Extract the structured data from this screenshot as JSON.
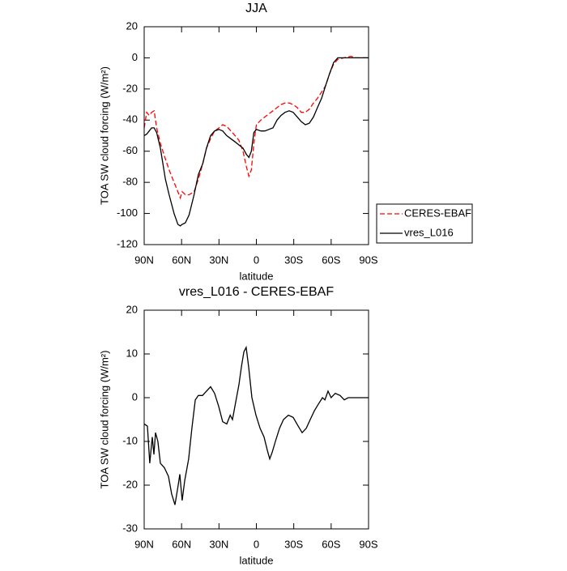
{
  "chart_data": [
    {
      "type": "line",
      "title": "JJA",
      "xlabel": "latitude",
      "ylabel": "TOA SW cloud forcing (W/m²)",
      "xlim": [
        90,
        -90
      ],
      "xticks": [
        {
          "value": 90,
          "label": "90N"
        },
        {
          "value": 60,
          "label": "60N"
        },
        {
          "value": 30,
          "label": "30N"
        },
        0,
        {
          "value": -30,
          "label": "30S"
        },
        {
          "value": -60,
          "label": "60S"
        },
        {
          "value": -90,
          "label": "90S"
        }
      ],
      "ylim": [
        -120,
        20
      ],
      "yticks": [
        -120,
        -100,
        -80,
        -60,
        -40,
        -20,
        0,
        20
      ],
      "legend": "right",
      "x": [
        90,
        88,
        86,
        84,
        82,
        80,
        77,
        73,
        70,
        66,
        63,
        61,
        59.5,
        57,
        54,
        50,
        46.5,
        43,
        40,
        36.7,
        33.5,
        30,
        27,
        23.7,
        20.5,
        17,
        14,
        10.7,
        8,
        6,
        4,
        2,
        0,
        -3.6,
        -6.8,
        -10,
        -13.3,
        -16.6,
        -19.8,
        -23,
        -26.3,
        -29.5,
        -32.8,
        -36,
        -39.3,
        -42.5,
        -45.8,
        -49,
        -52.3,
        -55.5,
        -58.8,
        -62,
        -65.3,
        -70.5,
        -76,
        -80,
        -90
      ],
      "series": [
        {
          "name": "CERES-EBAF",
          "color": "#ff0000",
          "linestyle": "dashed",
          "values": [
            -45,
            -35,
            -37,
            -35,
            -34,
            -45,
            -55,
            -65,
            -72,
            -80,
            -86,
            -90,
            -86,
            -88,
            -88,
            -86,
            -78,
            -68,
            -58,
            -52,
            -47,
            -45,
            -43,
            -44,
            -47,
            -50,
            -53,
            -60,
            -70,
            -76,
            -72,
            -55,
            -43,
            -40,
            -38,
            -36,
            -34,
            -32,
            -30,
            -29,
            -29,
            -30,
            -32,
            -35,
            -35,
            -33,
            -29,
            -26,
            -22,
            -18,
            -10,
            -4,
            -1,
            0,
            1,
            0,
            0
          ]
        },
        {
          "name": "vres_L016",
          "color": "#000000",
          "linestyle": "solid",
          "values": [
            -50,
            -49,
            -47,
            -45,
            -45,
            -48,
            -58,
            -78,
            -88,
            -100,
            -107,
            -108,
            -107,
            -106,
            -101,
            -88,
            -75,
            -68,
            -58,
            -50,
            -47,
            -46,
            -47,
            -50,
            -52,
            -54,
            -56,
            -58,
            -62,
            -64,
            -60,
            -48,
            -46,
            -47,
            -47,
            -46,
            -45,
            -40,
            -37,
            -35,
            -34,
            -35,
            -38,
            -41,
            -43,
            -42,
            -38,
            -32,
            -26,
            -18,
            -10,
            -3,
            0,
            0,
            0,
            0,
            0
          ]
        }
      ]
    },
    {
      "type": "line",
      "title": "vres_L016 - CERES-EBAF",
      "xlabel": "latitude",
      "ylabel": "TOA SW cloud forcing (W/m²)",
      "xlim": [
        90,
        -90
      ],
      "xticks": [
        {
          "value": 90,
          "label": "90N"
        },
        {
          "value": 60,
          "label": "60N"
        },
        {
          "value": 30,
          "label": "30N"
        },
        0,
        {
          "value": -30,
          "label": "30S"
        },
        {
          "value": -60,
          "label": "60S"
        },
        {
          "value": -90,
          "label": "90S"
        }
      ],
      "ylim": [
        -30,
        20
      ],
      "yticks": [
        -30,
        -20,
        -10,
        0,
        10,
        20
      ],
      "x": [
        90,
        87.4,
        85.5,
        83.5,
        82.2,
        80.9,
        79,
        77,
        73.8,
        70.5,
        68,
        65.3,
        62.7,
        61.4,
        59.5,
        57.5,
        54.3,
        51.7,
        49,
        46.5,
        43.2,
        40,
        36.7,
        33.5,
        30.2,
        27,
        23.7,
        21,
        19.2,
        16.6,
        14,
        12,
        10,
        8.2,
        6.2,
        3.6,
        0.3,
        -3,
        -6.2,
        -8.8,
        -10.7,
        -12.7,
        -15.3,
        -18.6,
        -21.8,
        -25.7,
        -29.5,
        -33.5,
        -36.7,
        -40,
        -43.2,
        -46.5,
        -49.7,
        -53,
        -55,
        -57.5,
        -60,
        -63.3,
        -67.2,
        -70.5,
        -73.7,
        -90
      ],
      "series": [
        {
          "color": "#000000",
          "linestyle": "solid",
          "values": [
            -6,
            -6.5,
            -15,
            -9,
            -13,
            -8,
            -10,
            -15,
            -16,
            -18,
            -22,
            -24.5,
            -20,
            -17.5,
            -23.5,
            -19,
            -14,
            -7,
            -0.5,
            0.5,
            0.5,
            1.5,
            2.5,
            1,
            -2,
            -5.5,
            -6,
            -4,
            -5,
            -1,
            3,
            7,
            10.5,
            11.5,
            7,
            0,
            -4,
            -7,
            -9,
            -12,
            -14,
            -12.5,
            -10,
            -7,
            -5,
            -4,
            -4.5,
            -6.5,
            -8,
            -7,
            -5,
            -3,
            -1.5,
            0,
            -0.5,
            1.5,
            0,
            1,
            0.5,
            -0.5,
            0,
            0
          ]
        }
      ]
    }
  ]
}
